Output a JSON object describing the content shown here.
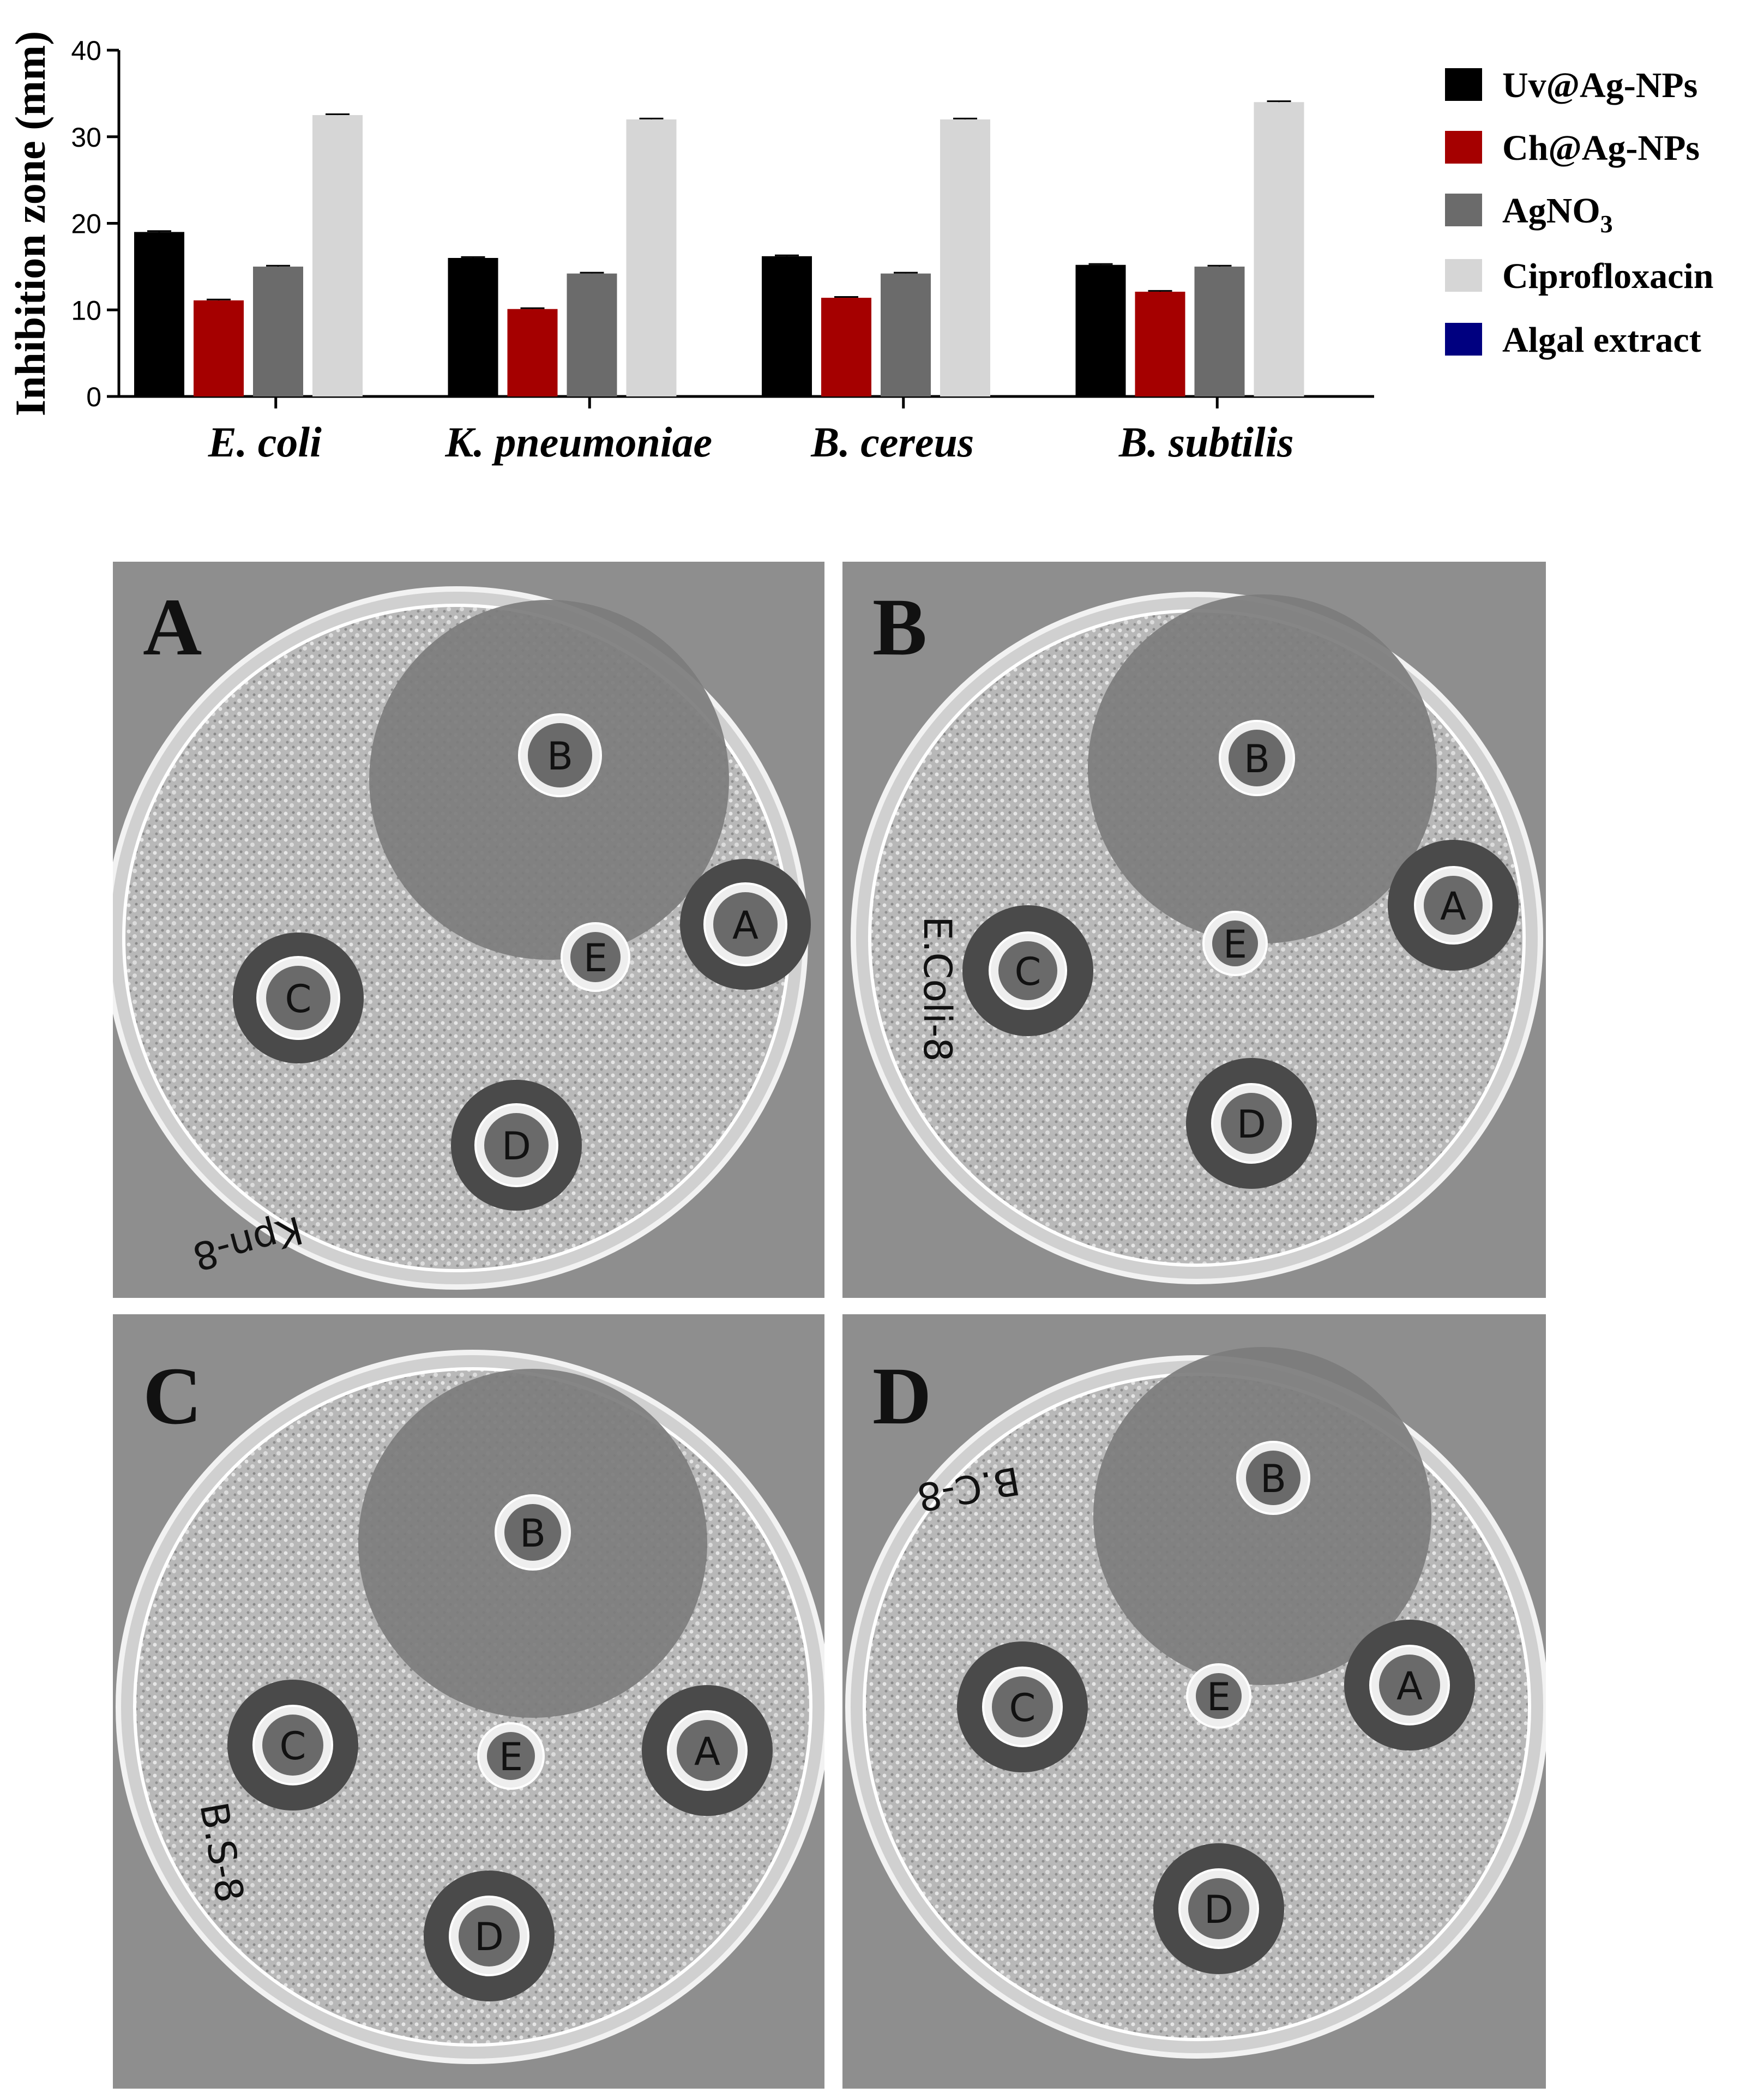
{
  "chart_data": {
    "type": "bar",
    "ylabel": "Inhibition zone (mm)",
    "xlabel": "",
    "ylim": [
      0,
      40
    ],
    "yticks": [
      "0",
      "10",
      "20",
      "30",
      "40"
    ],
    "categories": [
      "E. coli",
      "K. pneumoniae",
      "B. cereus",
      "B. subtilis"
    ],
    "legend_position": "right",
    "series": [
      {
        "name": "Uv@Ag-NPs",
        "color": "#000000",
        "values": [
          19,
          16,
          16.2,
          15.2
        ],
        "errors": [
          0.1,
          0.1,
          0.1,
          0.1
        ]
      },
      {
        "name": "Ch@Ag-NPs",
        "color": "#a50000",
        "values": [
          11.1,
          10.1,
          11.4,
          12.1
        ],
        "errors": [
          0.1,
          0.1,
          0.1,
          0.1
        ]
      },
      {
        "name": "AgNO3",
        "color": "#6b6b6b",
        "values": [
          15,
          14.2,
          14.2,
          15
        ],
        "errors": [
          0.1,
          0.1,
          0.1,
          0.1
        ]
      },
      {
        "name": "Ciprofloxacin",
        "color": "#d6d6d6",
        "values": [
          32.5,
          32,
          32,
          34
        ],
        "errors": [
          0.1,
          0.1,
          0.1,
          0.1
        ]
      },
      {
        "name": "Algal extract",
        "color": "#000080",
        "values": [
          0,
          0,
          0,
          0
        ],
        "errors": [
          0,
          0,
          0,
          0
        ]
      }
    ]
  },
  "legend": {
    "uv": "Uv@Ag-NPs",
    "ch": "Ch@Ag-NPs",
    "agno3_main": "AgNO",
    "agno3_sub": "3",
    "cipro": "Ciprofloxacin",
    "algal": "Algal extract"
  },
  "panels": [
    {
      "letter": "A",
      "handwriting": "Kpn-8",
      "wells": [
        "B",
        "A",
        "E",
        "C",
        "D"
      ]
    },
    {
      "letter": "B",
      "handwriting": "E.Coli-8",
      "wells": [
        "B",
        "A",
        "E",
        "C",
        "D"
      ]
    },
    {
      "letter": "C",
      "handwriting": "B.S-8",
      "wells": [
        "B",
        "A",
        "E",
        "C",
        "D"
      ]
    },
    {
      "letter": "D",
      "handwriting": "B.C-8",
      "wells": [
        "B",
        "A",
        "E",
        "C",
        "D"
      ]
    }
  ]
}
